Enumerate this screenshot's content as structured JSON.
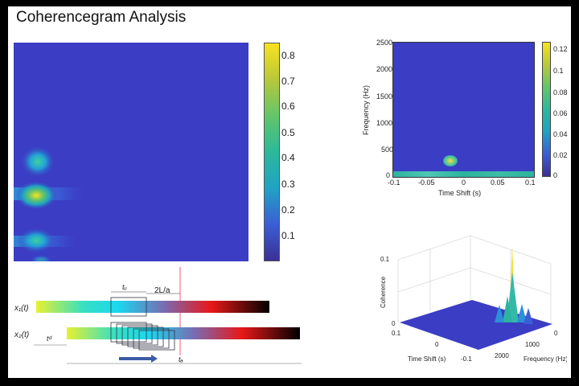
{
  "slide": {
    "title": "Coherencegram Analysis"
  },
  "chart_data": [
    {
      "type": "heatmap",
      "panel": "large-coherencegram",
      "title": "",
      "xlabel": "",
      "ylabel": "",
      "colorbar": {
        "min": 0,
        "max": 0.85,
        "ticks": [
          "0.1",
          "0.2",
          "0.3",
          "0.4",
          "0.5",
          "0.6",
          "0.7",
          "0.8"
        ]
      },
      "hotspots": [
        {
          "row": "upper",
          "value": 0.45
        },
        {
          "row": "middle",
          "value": 0.8
        },
        {
          "row": "lower",
          "value": 0.5
        }
      ]
    },
    {
      "type": "heatmap",
      "panel": "time-shift-frequency",
      "xlabel": "Time Shift (s)",
      "ylabel": "Frequency (Hz)",
      "xlim": [
        -0.1,
        0.1
      ],
      "ylim": [
        0,
        2500
      ],
      "xticks": [
        "-0.1",
        "-0.05",
        "0",
        "0.05",
        "0.1"
      ],
      "yticks": [
        "0",
        "500",
        "1000",
        "1500",
        "2000",
        "2500"
      ],
      "colorbar": {
        "min": 0,
        "max": 0.125,
        "ticks": [
          "0",
          "0.02",
          "0.04",
          "0.06",
          "0.08",
          "0.1",
          "0.12"
        ]
      },
      "peak": {
        "x": -0.02,
        "y": 300,
        "value": 0.1
      }
    },
    {
      "type": "surface",
      "panel": "coherence-3d",
      "xlabel": "Time Shift (s)",
      "ylabel": "Frequency (Hz)",
      "zlabel": "Coherence",
      "xticks": [
        "0.1",
        "0",
        "-0.1"
      ],
      "yticks": [
        "0",
        "1000",
        "2000"
      ],
      "zticks": [
        "0",
        "0.05",
        "0.1"
      ],
      "peak": {
        "time_shift": 0,
        "frequency": 300,
        "coherence": 0.12
      }
    }
  ],
  "diagram": {
    "signal1": "x₁(t)",
    "signal2": "x₂(t)",
    "window_label": "tᵤ",
    "delay_label": "2L/a",
    "td_label": "tᵈ",
    "ta_label": "tₐ"
  }
}
